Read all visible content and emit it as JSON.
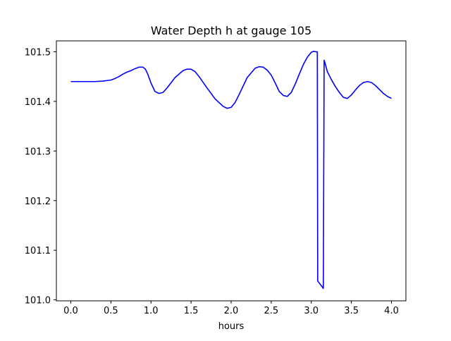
{
  "chart_data": {
    "type": "line",
    "title": "Water Depth h at gauge 105",
    "xlabel": "hours",
    "ylabel": "",
    "xlim": [
      -0.18,
      4.18
    ],
    "ylim": [
      100.998,
      101.522
    ],
    "x_ticks": [
      0.0,
      0.5,
      1.0,
      1.5,
      2.0,
      2.5,
      3.0,
      3.5,
      4.0
    ],
    "x_tick_labels": [
      "0.0",
      "0.5",
      "1.0",
      "1.5",
      "2.0",
      "2.5",
      "3.0",
      "3.5",
      "4.0"
    ],
    "y_ticks": [
      101.0,
      101.1,
      101.2,
      101.3,
      101.4,
      101.5
    ],
    "y_tick_labels": [
      "101.0",
      "101.1",
      "101.2",
      "101.3",
      "101.4",
      "101.5"
    ],
    "grid": false,
    "legend": "none",
    "series": [
      {
        "color": "#0000ff",
        "x": [
          0.0,
          0.1,
          0.2,
          0.3,
          0.4,
          0.5,
          0.55,
          0.6,
          0.65,
          0.7,
          0.75,
          0.8,
          0.85,
          0.9,
          0.93,
          0.96,
          1.0,
          1.05,
          1.1,
          1.15,
          1.2,
          1.3,
          1.4,
          1.45,
          1.5,
          1.55,
          1.6,
          1.7,
          1.8,
          1.9,
          1.95,
          2.0,
          2.05,
          2.1,
          2.2,
          2.3,
          2.35,
          2.4,
          2.45,
          2.5,
          2.55,
          2.6,
          2.65,
          2.7,
          2.75,
          2.8,
          2.85,
          2.9,
          2.95,
          3.0,
          3.03,
          3.06,
          3.075,
          3.08,
          3.15,
          3.16,
          3.17,
          3.2,
          3.25,
          3.3,
          3.35,
          3.4,
          3.45,
          3.5,
          3.55,
          3.6,
          3.65,
          3.7,
          3.75,
          3.8,
          3.85,
          3.9,
          3.95,
          4.0
        ],
        "y": [
          101.44,
          101.44,
          101.44,
          101.44,
          101.441,
          101.443,
          101.446,
          101.45,
          101.455,
          101.459,
          101.462,
          101.466,
          101.469,
          101.469,
          101.465,
          101.455,
          101.437,
          101.42,
          101.416,
          101.418,
          101.427,
          101.448,
          101.462,
          101.465,
          101.465,
          101.46,
          101.45,
          101.427,
          101.405,
          101.39,
          101.386,
          101.388,
          101.398,
          101.414,
          101.448,
          101.467,
          101.47,
          101.469,
          101.463,
          101.453,
          101.437,
          101.42,
          101.412,
          101.41,
          101.418,
          101.435,
          101.455,
          101.474,
          101.489,
          101.499,
          101.501,
          101.5,
          101.5,
          101.038,
          101.023,
          101.483,
          101.478,
          101.46,
          101.444,
          101.43,
          101.418,
          101.408,
          101.406,
          101.413,
          101.423,
          101.432,
          101.438,
          101.44,
          101.438,
          101.432,
          101.424,
          101.416,
          101.41,
          101.406
        ]
      }
    ]
  }
}
